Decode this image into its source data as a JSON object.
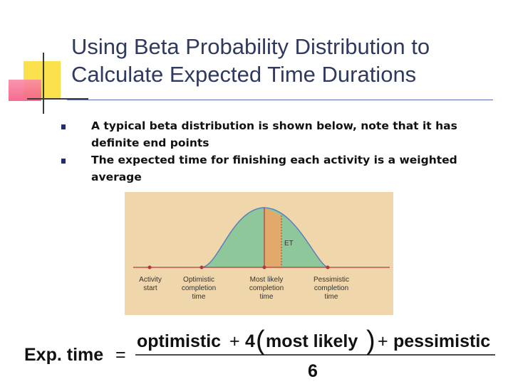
{
  "slide": {
    "title": "Using Beta Probability Distribution to Calculate Expected Time Durations",
    "bullets": [
      {
        "text": "A typical beta distribution is shown below, note that it has definite end points"
      },
      {
        "text": "The expected time for finishing each activity is a weighted average"
      }
    ]
  },
  "figure": {
    "et_label": "ET",
    "axis_labels": [
      {
        "line1": "Activity",
        "line2": "start",
        "line3": ""
      },
      {
        "line1": "Optimistic",
        "line2": "completion",
        "line3": "time"
      },
      {
        "line1": "Most likely",
        "line2": "completion",
        "line3": "time"
      },
      {
        "line1": "Pessimistic",
        "line2": "completion",
        "line3": "time"
      }
    ],
    "colors": {
      "panel": "#efd6ab",
      "curve_fill": "#8ec89a",
      "curve_stroke": "#5a7fbf",
      "et_band": "#e3a96a",
      "points": "#b0393e"
    }
  },
  "formula": {
    "lhs": "Exp. time",
    "equals": "=",
    "term1": "optimistic",
    "plus1": "+",
    "coef": "4",
    "open_paren": "(",
    "term2": "most likely",
    "close_paren": ")",
    "plus2": "+",
    "term3": "pessimistic",
    "denominator": "6"
  }
}
